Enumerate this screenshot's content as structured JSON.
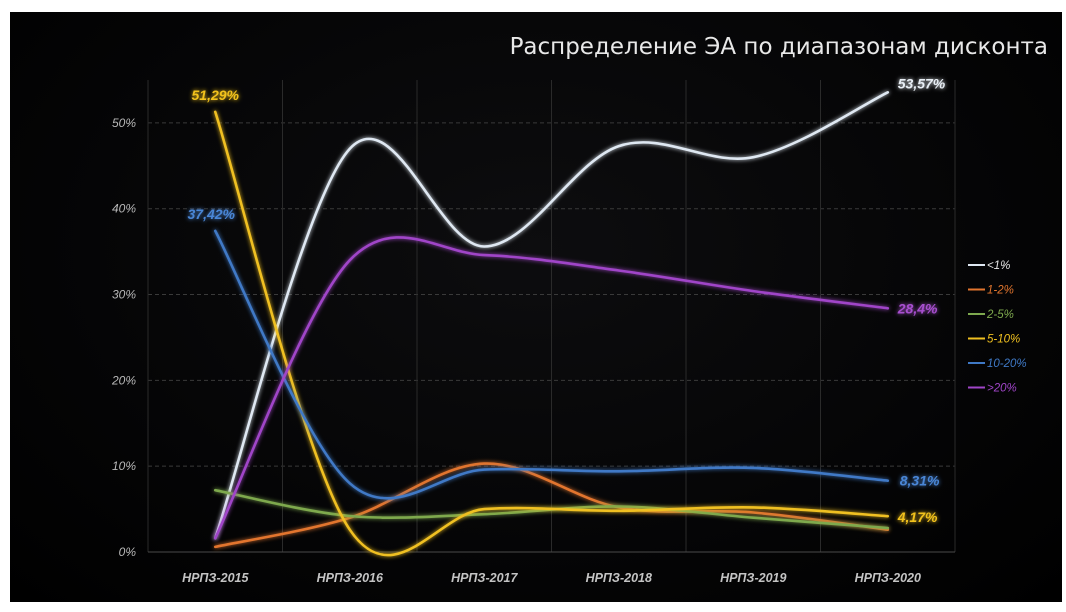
{
  "title": "Распределение ЭА по диапазонам дисконта",
  "chart_data": {
    "type": "line",
    "title": "Распределение ЭА по диапазонам дисконта",
    "categories": [
      "НРПЗ-2015",
      "НРПЗ-2016",
      "НРПЗ-2017",
      "НРПЗ-2018",
      "НРПЗ-2019",
      "НРПЗ-2020"
    ],
    "ylim": [
      0,
      55
    ],
    "yticks": [
      0,
      10,
      20,
      30,
      40,
      50
    ],
    "ytick_labels": [
      "0%",
      "10%",
      "20%",
      "30%",
      "40%",
      "50%"
    ],
    "grid": true,
    "legend_position": "right",
    "series": [
      {
        "name": "<1%",
        "color": "#dfe8f2",
        "values": [
          1.6,
          47.0,
          35.6,
          47.3,
          46.0,
          53.57
        ]
      },
      {
        "name": "1-2%",
        "color": "#e2752e",
        "values": [
          0.6,
          4.0,
          10.3,
          5.2,
          4.6,
          2.6
        ]
      },
      {
        "name": "2-5%",
        "color": "#7ea94e",
        "values": [
          7.2,
          4.2,
          4.4,
          5.3,
          4.0,
          2.8
        ]
      },
      {
        "name": "5-10%",
        "color": "#f0c020",
        "values": [
          51.29,
          2.6,
          5.0,
          4.8,
          5.2,
          4.17
        ]
      },
      {
        "name": "10-20%",
        "color": "#3f79c6",
        "values": [
          37.42,
          8.0,
          9.6,
          9.4,
          9.8,
          8.31
        ]
      },
      {
        "name": ">20%",
        "color": "#a045c8",
        "values": [
          1.6,
          34.0,
          34.6,
          32.8,
          30.4,
          28.4
        ]
      }
    ],
    "data_labels": [
      {
        "series": ">20%",
        "index": 5,
        "text": "28,4%",
        "color": "#a84fd0"
      },
      {
        "series": "<1%",
        "index": 5,
        "text": "53,57%",
        "color": "#e8eef5"
      },
      {
        "series": "5-10%",
        "index": 0,
        "text": "51,29%",
        "color": "#f2c21e"
      },
      {
        "series": "10-20%",
        "index": 0,
        "text": "37,42%",
        "color": "#4a86d6"
      },
      {
        "series": "10-20%",
        "index": 5,
        "text": "8,31%",
        "color": "#4a86d6"
      },
      {
        "series": "5-10%",
        "index": 5,
        "text": "4,17%",
        "color": "#f2c21e"
      }
    ]
  }
}
